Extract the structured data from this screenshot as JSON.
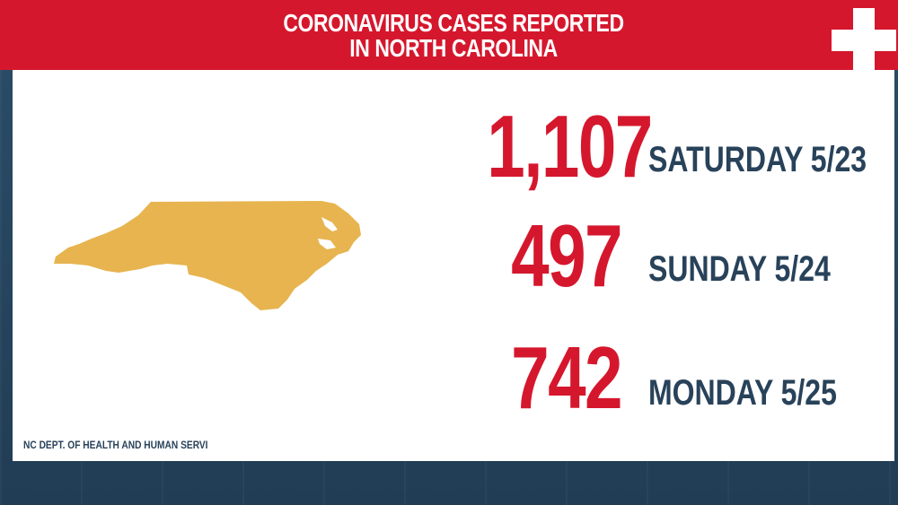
{
  "header": {
    "title_line1": "CORONAVIRUS CASES REPORTED",
    "title_line2": "IN NORTH CAROLINA"
  },
  "stats": [
    {
      "value": "1,107",
      "label": "SATURDAY 5/23"
    },
    {
      "value": "497",
      "label": "SUNDAY 5/24"
    },
    {
      "value": "742",
      "label": "MONDAY 5/25"
    }
  ],
  "source": "NC DEPT. OF HEALTH AND HUMAN SERVI",
  "colors": {
    "accent_red": "#d5172d",
    "text_navy": "#28425a",
    "map_fill": "#e7b44f",
    "background": "#27455f"
  },
  "icons": {
    "cross": "medical-cross-icon",
    "map": "north-carolina-map"
  }
}
